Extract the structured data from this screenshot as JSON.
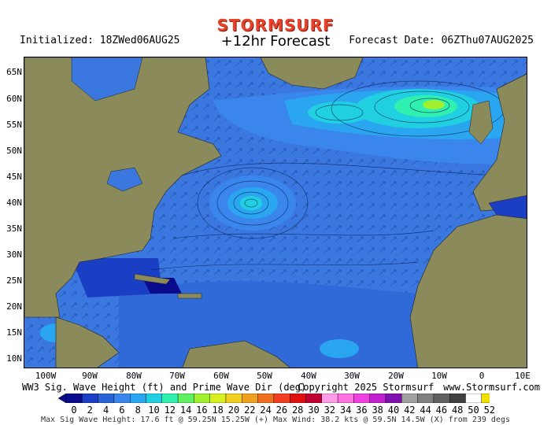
{
  "brand": "STORMSURF",
  "initialized": "Initialized: 18ZWed06AUG25",
  "title": "+12hr Forecast",
  "forecast_date": "Forecast Date: 06ZThu07AUG2025",
  "lat_labels": [
    "65N",
    "60N",
    "55N",
    "50N",
    "45N",
    "40N",
    "35N",
    "30N",
    "25N",
    "20N",
    "15N",
    "10N"
  ],
  "lon_labels": [
    "100W",
    "90W",
    "80W",
    "70W",
    "60W",
    "50W",
    "40W",
    "30W",
    "20W",
    "10W",
    "0",
    "10E"
  ],
  "footer_left": "WW3 Sig. Wave Height (ft) and Prime Wave Dir (deg)",
  "footer_center": "Copyright 2025 Stormsurf",
  "footer_right": "www.Stormsurf.com",
  "scale_values": [
    "0",
    "2",
    "4",
    "6",
    "8",
    "10",
    "12",
    "14",
    "16",
    "18",
    "20",
    "22",
    "24",
    "26",
    "28",
    "30",
    "32",
    "34",
    "36",
    "38",
    "40",
    "42",
    "44",
    "46",
    "48",
    "50",
    "52"
  ],
  "scale_colors": [
    "#0a0a8c",
    "#1a3fc4",
    "#2a62d8",
    "#3a86ec",
    "#2aa6f0",
    "#20d0e0",
    "#30f0b0",
    "#60f060",
    "#a0f030",
    "#d8f020",
    "#f0d020",
    "#f0a020",
    "#f07020",
    "#f04020",
    "#e01010",
    "#c00030",
    "#ff9ee8",
    "#ff70e0",
    "#f040e0",
    "#c020d0",
    "#8010b0",
    "#a0a0a0",
    "#808080",
    "#606060",
    "#404040",
    "#ffffff",
    "#f0e000"
  ],
  "max_info": "Max Sig Wave Height: 17.6 ft @ 59.25N 15.25W (+)   Max Wind: 38.2 kts @ 59.5N 14.5W (X) from 239 degs",
  "colors": {
    "land": "#8a8a5a",
    "ocean_base": "#3a78e0",
    "brand": "#e8432a"
  }
}
